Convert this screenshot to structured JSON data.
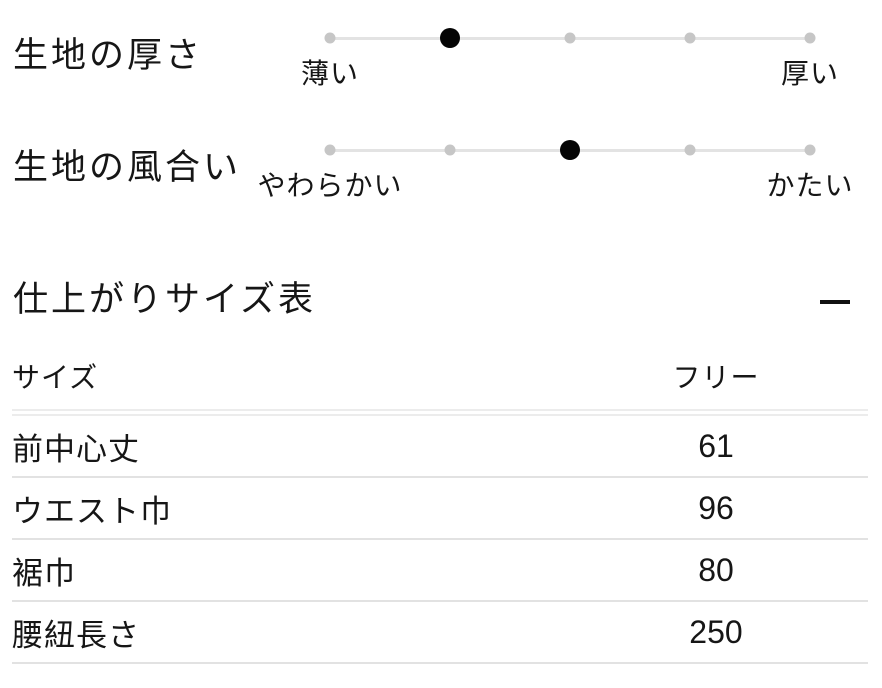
{
  "scales": {
    "items": [
      {
        "title": "生地の厚さ",
        "left_label": "薄い",
        "right_label": "厚い",
        "steps": 5,
        "value": 2
      },
      {
        "title": "生地の風合い",
        "left_label": "やわらかい",
        "right_label": "かたい",
        "steps": 5,
        "value": 3
      }
    ]
  },
  "size_section": {
    "title": "仕上がりサイズ表",
    "collapse_icon": "minus-icon",
    "table": {
      "header": {
        "label_col": "サイズ",
        "value_col": "フリー"
      },
      "rows": [
        {
          "label": "前中心丈",
          "value": "61"
        },
        {
          "label": "ウエスト巾",
          "value": "96"
        },
        {
          "label": "裾巾",
          "value": "80"
        },
        {
          "label": "腰紐長さ",
          "value": "250"
        }
      ]
    }
  },
  "colors": {
    "text": "#161616",
    "active_dot": "#050505",
    "inactive_dot": "#c6c6c6",
    "track_line": "#e3e3e3",
    "row_divider": "#e2e2e2",
    "header_divider": "#ececec"
  }
}
